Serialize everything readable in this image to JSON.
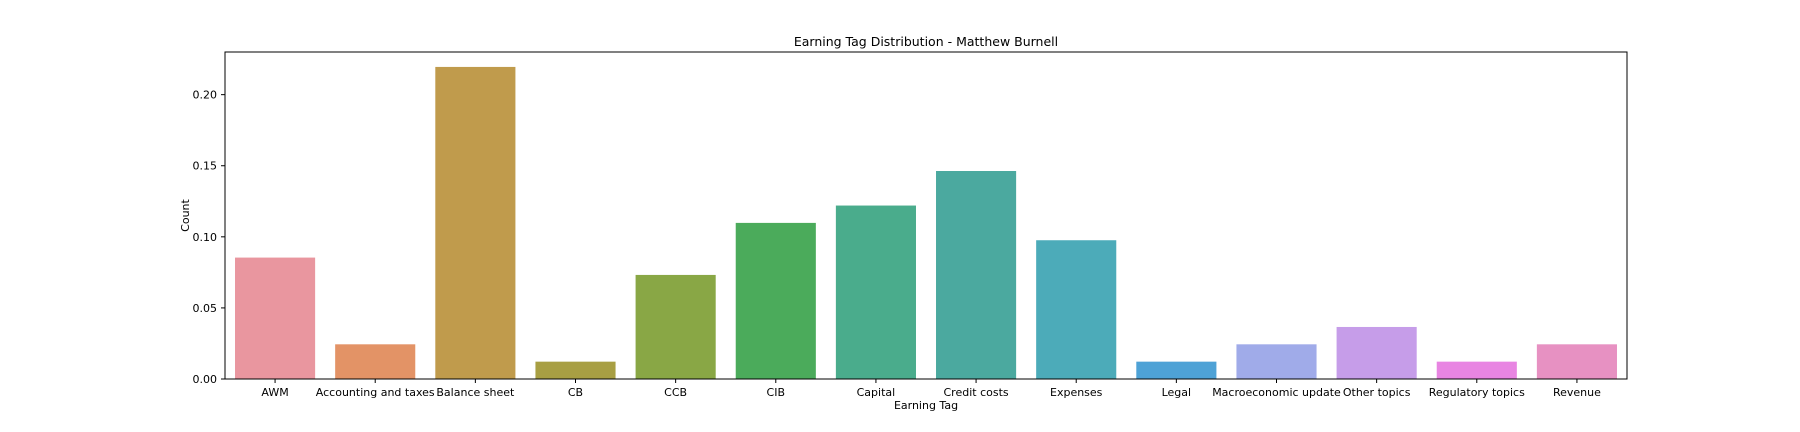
{
  "chart_data": {
    "type": "bar",
    "title": "Earning Tag Distribution - Matthew Burnell",
    "xlabel": "Earning Tag",
    "ylabel": "Count",
    "ylim": [
      0,
      0.23
    ],
    "yticks": [
      "0.00",
      "0.05",
      "0.10",
      "0.15",
      "0.20"
    ],
    "grid": false,
    "categories": [
      "AWM",
      "Accounting and taxes",
      "Balance sheet",
      "CB",
      "CCB",
      "CIB",
      "Capital",
      "Credit costs",
      "Expenses",
      "Legal",
      "Macroeconomic update",
      "Other topics",
      "Regulatory topics",
      "Revenue"
    ],
    "values": [
      0.0854,
      0.0244,
      0.2195,
      0.0122,
      0.0732,
      0.1098,
      0.122,
      0.1463,
      0.0976,
      0.0122,
      0.0244,
      0.0366,
      0.0122,
      0.0244
    ],
    "colors": [
      "#e9969f",
      "#e39366",
      "#c09b4c",
      "#a89f43",
      "#89a745",
      "#4bab5b",
      "#4aac8c",
      "#4ba99f",
      "#4cabb9",
      "#4ea2d6",
      "#a0abe9",
      "#c69de9",
      "#e885e2",
      "#e791c2"
    ]
  }
}
